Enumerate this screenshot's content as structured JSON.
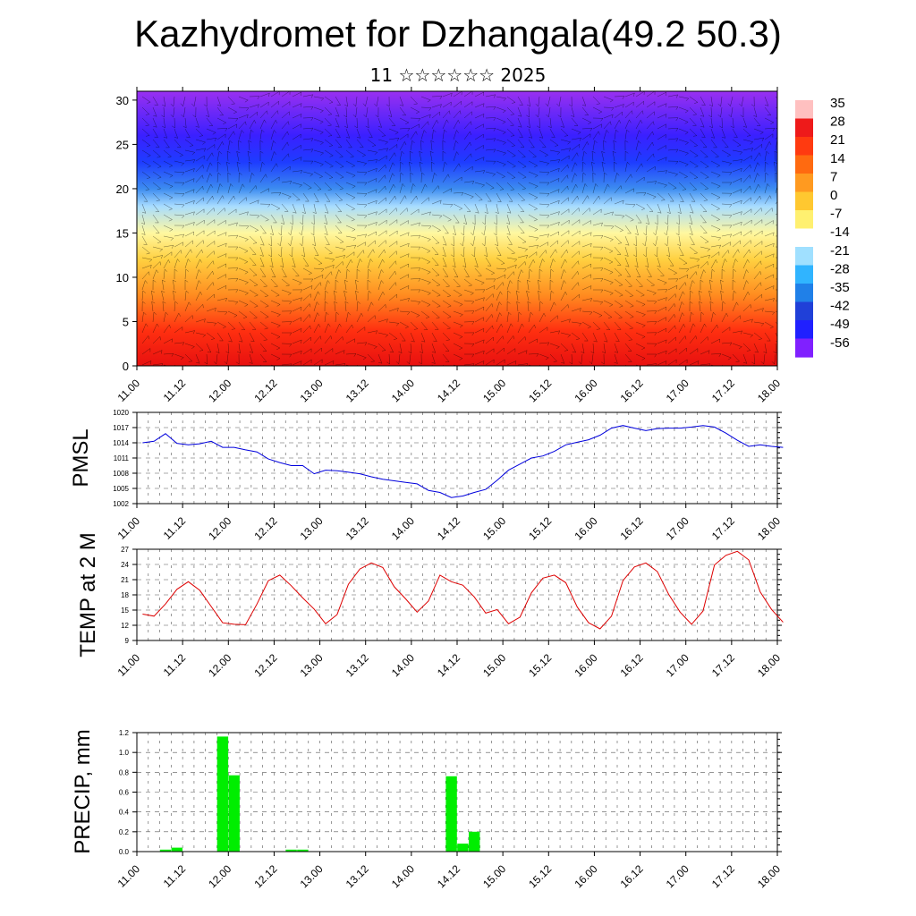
{
  "title": "Kazhydromet for Dzhangala(49.2 50.3)",
  "subtitle": "11 ☆☆☆☆☆☆ 2025",
  "colors": {
    "pmsl": "#0000dd",
    "temp": "#dd0000",
    "precip": "#00ee00",
    "wind": "#000000",
    "grid": "#555555"
  },
  "x_tick_labels": [
    "11.00",
    "11.12",
    "12.00",
    "12.12",
    "13.00",
    "13.12",
    "14.00",
    "14.12",
    "15.00",
    "15.12",
    "16.00",
    "16.12",
    "17.00",
    "17.12",
    "18.00"
  ],
  "chart_data": [
    {
      "type": "heatmap",
      "description_field": "temperature cross-section with wind barbs",
      "y_ticks": [
        0,
        5,
        10,
        15,
        20,
        25,
        30
      ],
      "ylim": [
        0,
        31
      ],
      "colorbar_ticks": [
        "35",
        "28",
        "21",
        "14",
        "7",
        "0",
        "-7",
        "-14",
        "-21",
        "-28",
        "-35",
        "-42",
        "-49",
        "-56"
      ],
      "colorbar_colors": [
        "#ffc0c0",
        "#ee1a1a",
        "#ff3a10",
        "#ff6a10",
        "#ff9a20",
        "#ffc830",
        "#fff070",
        "#ffffff",
        "#a0e0ff",
        "#30b4ff",
        "#2080e8",
        "#2040d8",
        "#2020ff",
        "#8020ff"
      ],
      "profile_levels": [
        0,
        4,
        8,
        12,
        15,
        18,
        20,
        23,
        26,
        31
      ],
      "profile_colors": [
        "#e81010",
        "#ff3010",
        "#ff8c20",
        "#ffd040",
        "#fff8a0",
        "#a8dcff",
        "#3c8cf0",
        "#1e3cff",
        "#3a20ff",
        "#9a30f0"
      ]
    },
    {
      "type": "line",
      "ylabel": "PMSL",
      "y_ticks": [
        1002,
        1005,
        1008,
        1011,
        1014,
        1017,
        1020
      ],
      "ylim": [
        1002,
        1020
      ],
      "x": [
        0,
        1,
        2,
        3,
        4,
        5,
        6,
        7,
        8,
        9,
        10,
        11,
        12,
        13,
        14,
        15,
        16,
        17,
        18,
        19,
        20,
        21,
        22,
        23,
        24,
        25,
        26,
        27,
        28,
        29,
        30,
        31,
        32,
        33,
        34,
        35,
        36,
        37,
        38,
        39,
        40,
        41,
        42,
        43,
        44,
        45,
        46,
        47,
        48,
        49,
        50,
        51,
        52,
        53,
        54,
        55,
        56
      ],
      "series": [
        {
          "values": [
            1014,
            1014.3,
            1015.8,
            1013.9,
            1013.6,
            1013.8,
            1014.3,
            1013.1,
            1013.1,
            1012.6,
            1012.2,
            1010.8,
            1010.1,
            1009.5,
            1009.5,
            1007.9,
            1008.6,
            1008.5,
            1008.2,
            1007.9,
            1007.3,
            1006.8,
            1006.5,
            1006.2,
            1005.9,
            1004.6,
            1004.2,
            1003.2,
            1003.5,
            1004.2,
            1004.8,
            1006.6,
            1008.6,
            1009.8,
            1011,
            1011.4,
            1012.3,
            1013.6,
            1014.1,
            1014.6,
            1015.5,
            1016.9,
            1017.4,
            1016.9,
            1016.4,
            1016.8,
            1016.9,
            1016.9,
            1017.1,
            1017.4,
            1017.1,
            1015.9,
            1014.5,
            1013.3,
            1013.6,
            1013.3,
            1013.1
          ]
        }
      ]
    },
    {
      "type": "line",
      "ylabel": "TEMP at 2 M",
      "y_ticks": [
        9,
        12,
        15,
        18,
        21,
        24,
        27
      ],
      "ylim": [
        9,
        27
      ],
      "x": [
        0,
        1,
        2,
        3,
        4,
        5,
        6,
        7,
        8,
        9,
        10,
        11,
        12,
        13,
        14,
        15,
        16,
        17,
        18,
        19,
        20,
        21,
        22,
        23,
        24,
        25,
        26,
        27,
        28,
        29,
        30,
        31,
        32,
        33,
        34,
        35,
        36,
        37,
        38,
        39,
        40,
        41,
        42,
        43,
        44,
        45,
        46,
        47,
        48,
        49,
        50,
        51,
        52,
        53,
        54,
        55,
        56
      ],
      "series": [
        {
          "values": [
            14.2,
            13.8,
            16.2,
            19.1,
            20.6,
            18.9,
            15.7,
            12.5,
            12.2,
            12.1,
            16.2,
            20.8,
            21.9,
            19.8,
            17.4,
            15.2,
            12.3,
            14.1,
            20.1,
            23.1,
            24.3,
            23.4,
            19.6,
            17.2,
            14.6,
            16.8,
            21.9,
            20.6,
            19.9,
            17.6,
            14.4,
            15.1,
            12.3,
            13.6,
            18.4,
            21.3,
            21.9,
            20.4,
            15.6,
            12.5,
            11.3,
            13.8,
            20.8,
            23.5,
            24.3,
            22.6,
            18.1,
            14.6,
            12.2,
            14.8,
            23.9,
            25.8,
            26.6,
            24.9,
            18.6,
            15.1,
            12.6
          ]
        }
      ]
    },
    {
      "type": "bar",
      "ylabel": "PRECIP, mm",
      "y_ticks": [
        "0.0",
        "0.2",
        "0.4",
        "0.6",
        "0.8",
        "1.0",
        "1.2"
      ],
      "ylim": [
        0,
        1.2
      ],
      "x": [
        0,
        1,
        2,
        3,
        4,
        5,
        6,
        7,
        8,
        9,
        10,
        11,
        12,
        13,
        14,
        15,
        16,
        17,
        18,
        19,
        20,
        21,
        22,
        23,
        24,
        25,
        26,
        27,
        28,
        29,
        30,
        31,
        32,
        33,
        34,
        35,
        36,
        37,
        38,
        39,
        40,
        41,
        42,
        43,
        44,
        45,
        46,
        47,
        48,
        49,
        50,
        51,
        52,
        53,
        54,
        55,
        56
      ],
      "values": [
        0,
        0,
        0.02,
        0.04,
        0,
        0,
        0,
        1.16,
        0.77,
        0,
        0,
        0,
        0,
        0.02,
        0.02,
        0,
        0,
        0,
        0,
        0,
        0,
        0,
        0,
        0,
        0,
        0,
        0,
        0.76,
        0.08,
        0.2,
        0,
        0,
        0,
        0,
        0,
        0,
        0,
        0,
        0,
        0,
        0,
        0,
        0,
        0,
        0,
        0,
        0,
        0,
        0,
        0,
        0,
        0,
        0,
        0,
        0,
        0,
        0
      ]
    }
  ]
}
